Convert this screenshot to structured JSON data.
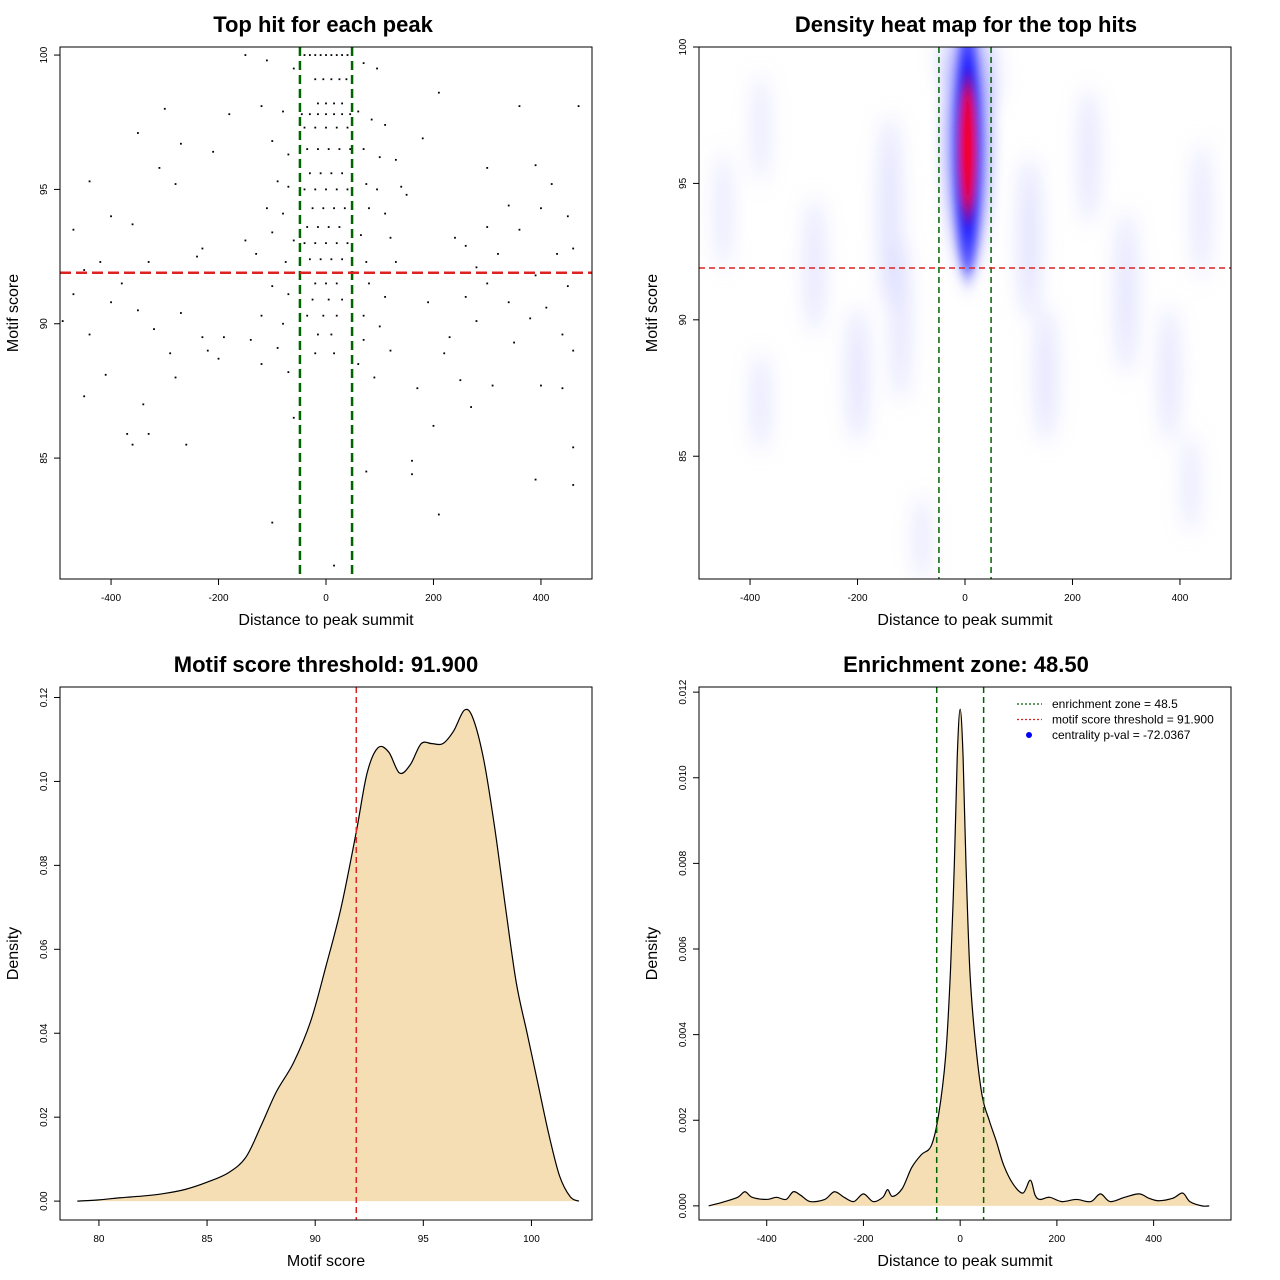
{
  "chart_data": [
    {
      "type": "scatter",
      "title": "Top hit for each peak",
      "xlabel": "Distance to peak summit",
      "ylabel": "Motif score",
      "xlim": [
        -495,
        495
      ],
      "ylim": [
        80.5,
        100.3
      ],
      "xticks": [
        -400,
        -200,
        0,
        200,
        400
      ],
      "yticks": [
        85,
        90,
        95,
        100
      ],
      "vlines": [
        -48.5,
        48.5
      ],
      "hline": 91.9,
      "vline_color": "#006400",
      "hline_color": "#dd2222",
      "points": [
        [
          -40,
          100
        ],
        [
          -30,
          100
        ],
        [
          -20,
          100
        ],
        [
          -10,
          100
        ],
        [
          0,
          100
        ],
        [
          10,
          100
        ],
        [
          20,
          100
        ],
        [
          30,
          100
        ],
        [
          40,
          100
        ],
        [
          -20,
          99.1
        ],
        [
          -5,
          99.1
        ],
        [
          10,
          99.1
        ],
        [
          25,
          99.1
        ],
        [
          38,
          99.1
        ],
        [
          -15,
          98.2
        ],
        [
          0,
          98.2
        ],
        [
          15,
          98.2
        ],
        [
          30,
          98.2
        ],
        [
          -45,
          97.8
        ],
        [
          -30,
          97.8
        ],
        [
          -15,
          97.8
        ],
        [
          0,
          97.8
        ],
        [
          15,
          97.8
        ],
        [
          30,
          97.8
        ],
        [
          45,
          97.8
        ],
        [
          -40,
          97.3
        ],
        [
          -20,
          97.3
        ],
        [
          0,
          97.3
        ],
        [
          20,
          97.3
        ],
        [
          40,
          97.3
        ],
        [
          -35,
          96.5
        ],
        [
          -15,
          96.5
        ],
        [
          5,
          96.5
        ],
        [
          25,
          96.5
        ],
        [
          45,
          96.5
        ],
        [
          -30,
          95.6
        ],
        [
          -10,
          95.6
        ],
        [
          10,
          95.6
        ],
        [
          30,
          95.6
        ],
        [
          -40,
          95.0
        ],
        [
          -20,
          95.0
        ],
        [
          0,
          95.0
        ],
        [
          20,
          95.0
        ],
        [
          40,
          95.0
        ],
        [
          -25,
          94.3
        ],
        [
          -5,
          94.3
        ],
        [
          15,
          94.3
        ],
        [
          35,
          94.3
        ],
        [
          -35,
          93.6
        ],
        [
          -15,
          93.6
        ],
        [
          5,
          93.6
        ],
        [
          25,
          93.6
        ],
        [
          -40,
          93.0
        ],
        [
          -20,
          93.0
        ],
        [
          0,
          93.0
        ],
        [
          20,
          93.0
        ],
        [
          40,
          93.0
        ],
        [
          -30,
          92.4
        ],
        [
          -10,
          92.4
        ],
        [
          10,
          92.4
        ],
        [
          30,
          92.4
        ],
        [
          -20,
          91.5
        ],
        [
          0,
          91.5
        ],
        [
          20,
          91.5
        ],
        [
          -25,
          90.9
        ],
        [
          5,
          90.9
        ],
        [
          30,
          90.9
        ],
        [
          -35,
          90.3
        ],
        [
          -5,
          90.3
        ],
        [
          20,
          90.3
        ],
        [
          -15,
          89.6
        ],
        [
          10,
          89.6
        ],
        [
          -20,
          88.9
        ],
        [
          15,
          88.9
        ],
        [
          -150,
          100
        ],
        [
          -110,
          99.8
        ],
        [
          -60,
          99.5
        ],
        [
          70,
          99.7
        ],
        [
          95,
          99.5
        ],
        [
          -120,
          98.1
        ],
        [
          -80,
          97.9
        ],
        [
          60,
          97.9
        ],
        [
          85,
          97.6
        ],
        [
          110,
          97.4
        ],
        [
          -100,
          96.8
        ],
        [
          -70,
          96.3
        ],
        [
          70,
          96.5
        ],
        [
          100,
          96.2
        ],
        [
          130,
          96.1
        ],
        [
          -90,
          95.3
        ],
        [
          -70,
          95.1
        ],
        [
          75,
          95.2
        ],
        [
          95,
          95.0
        ],
        [
          140,
          95.1
        ],
        [
          -110,
          94.3
        ],
        [
          -80,
          94.1
        ],
        [
          80,
          94.3
        ],
        [
          110,
          94.1
        ],
        [
          -100,
          93.4
        ],
        [
          -60,
          93.1
        ],
        [
          65,
          93.3
        ],
        [
          120,
          93.2
        ],
        [
          -130,
          92.6
        ],
        [
          -75,
          92.3
        ],
        [
          75,
          92.3
        ],
        [
          130,
          92.3
        ],
        [
          -100,
          91.4
        ],
        [
          -70,
          91.1
        ],
        [
          80,
          91.5
        ],
        [
          110,
          91.0
        ],
        [
          -120,
          90.3
        ],
        [
          -80,
          90.0
        ],
        [
          70,
          90.3
        ],
        [
          100,
          89.9
        ],
        [
          -140,
          89.4
        ],
        [
          -90,
          89.1
        ],
        [
          70,
          89.4
        ],
        [
          120,
          89.0
        ],
        [
          -120,
          88.5
        ],
        [
          -70,
          88.2
        ],
        [
          60,
          88.5
        ],
        [
          90,
          88.0
        ],
        [
          -300,
          98.0
        ],
        [
          -350,
          97.1
        ],
        [
          -270,
          96.7
        ],
        [
          -310,
          95.8
        ],
        [
          -440,
          95.3
        ],
        [
          -280,
          95.2
        ],
        [
          -400,
          94.0
        ],
        [
          -360,
          93.7
        ],
        [
          -470,
          93.5
        ],
        [
          -240,
          92.5
        ],
        [
          -420,
          92.3
        ],
        [
          -330,
          92.3
        ],
        [
          -450,
          92.0
        ],
        [
          -380,
          91.5
        ],
        [
          -470,
          91.1
        ],
        [
          -400,
          90.8
        ],
        [
          -350,
          90.5
        ],
        [
          -270,
          90.4
        ],
        [
          -490,
          90.1
        ],
        [
          -320,
          89.8
        ],
        [
          -440,
          89.6
        ],
        [
          -230,
          89.5
        ],
        [
          -290,
          88.9
        ],
        [
          -410,
          88.1
        ],
        [
          -280,
          88.0
        ],
        [
          -200,
          88.7
        ],
        [
          -450,
          87.3
        ],
        [
          -340,
          87.0
        ],
        [
          -370,
          85.9
        ],
        [
          -330,
          85.9
        ],
        [
          -360,
          85.5
        ],
        [
          -260,
          85.5
        ],
        [
          -220,
          89.0
        ],
        [
          -190,
          89.5
        ],
        [
          -180,
          97.8
        ],
        [
          -210,
          96.4
        ],
        [
          -230,
          92.8
        ],
        [
          360,
          98.1
        ],
        [
          470,
          98.1
        ],
        [
          300,
          95.8
        ],
        [
          390,
          95.9
        ],
        [
          420,
          95.2
        ],
        [
          340,
          94.4
        ],
        [
          400,
          94.3
        ],
        [
          450,
          94.0
        ],
        [
          300,
          93.6
        ],
        [
          360,
          93.5
        ],
        [
          260,
          92.9
        ],
        [
          320,
          92.6
        ],
        [
          430,
          92.6
        ],
        [
          460,
          92.8
        ],
        [
          280,
          92.1
        ],
        [
          390,
          91.8
        ],
        [
          300,
          91.5
        ],
        [
          450,
          91.4
        ],
        [
          260,
          91.0
        ],
        [
          340,
          90.8
        ],
        [
          410,
          90.6
        ],
        [
          380,
          90.2
        ],
        [
          280,
          90.1
        ],
        [
          440,
          89.6
        ],
        [
          230,
          89.5
        ],
        [
          350,
          89.3
        ],
        [
          460,
          89.0
        ],
        [
          250,
          87.9
        ],
        [
          310,
          87.7
        ],
        [
          400,
          87.7
        ],
        [
          440,
          87.6
        ],
        [
          170,
          87.6
        ],
        [
          270,
          86.9
        ],
        [
          200,
          86.2
        ],
        [
          460,
          85.4
        ],
        [
          390,
          84.2
        ],
        [
          460,
          84.0
        ],
        [
          160,
          84.9
        ],
        [
          160,
          84.4
        ],
        [
          210,
          82.9
        ],
        [
          220,
          88.9
        ],
        [
          190,
          90.8
        ],
        [
          240,
          93.2
        ],
        [
          180,
          96.9
        ],
        [
          210,
          98.6
        ],
        [
          -100,
          82.6
        ],
        [
          15,
          81.0
        ],
        [
          -150,
          93.1
        ],
        [
          150,
          94.8
        ],
        [
          -60,
          86.5
        ],
        [
          75,
          84.5
        ]
      ]
    },
    {
      "type": "heatmap",
      "title": "Density heat map for the top hits",
      "xlabel": "Distance to peak summit",
      "ylabel": "Motif score",
      "xlim": [
        -495,
        495
      ],
      "ylim": [
        80.5,
        100
      ],
      "xticks": [
        -400,
        -200,
        0,
        200,
        400
      ],
      "yticks": [
        85,
        90,
        95,
        100
      ],
      "vlines": [
        -48.5,
        48.5
      ],
      "hline": 91.9,
      "peak_center": [
        5,
        96.5
      ],
      "color_scale": [
        "white",
        "blue",
        "red"
      ]
    },
    {
      "type": "area",
      "title": "Motif score threshold: 91.900",
      "xlabel": "Motif score",
      "ylabel": "Density",
      "xlim": [
        78.2,
        102.8
      ],
      "ylim": [
        -0.0045,
        0.1225
      ],
      "xticks": [
        80,
        85,
        90,
        95,
        100
      ],
      "yticks": [
        0.0,
        0.02,
        0.04,
        0.06,
        0.08,
        0.1,
        0.12
      ],
      "ytick_labels": [
        "0.00",
        "0.02",
        "0.04",
        "0.06",
        "0.08",
        "0.10",
        "0.12"
      ],
      "vline": 91.9,
      "fill": "#f5deb3",
      "x": [
        79,
        80,
        81,
        82,
        83,
        84,
        85,
        86,
        86.8,
        87.5,
        88.2,
        89,
        89.8,
        90.5,
        91.2,
        91.9,
        92.4,
        92.9,
        93.4,
        93.9,
        94.4,
        94.9,
        95.4,
        95.9,
        96.4,
        96.9,
        97.3,
        97.8,
        98.3,
        98.8,
        99.3,
        99.8,
        100.3,
        100.8,
        101.3,
        101.8,
        102.2
      ],
      "y": [
        0.0,
        0.0003,
        0.0008,
        0.0012,
        0.0018,
        0.0028,
        0.0045,
        0.0068,
        0.0105,
        0.018,
        0.026,
        0.033,
        0.043,
        0.056,
        0.07,
        0.088,
        0.102,
        0.108,
        0.107,
        0.102,
        0.104,
        0.109,
        0.109,
        0.109,
        0.112,
        0.117,
        0.115,
        0.105,
        0.089,
        0.07,
        0.052,
        0.04,
        0.028,
        0.016,
        0.006,
        0.001,
        0.0
      ]
    },
    {
      "type": "area",
      "title": "Enrichment zone: 48.50",
      "xlabel": "Distance to peak summit",
      "ylabel": "Density",
      "xlim": [
        -540,
        560
      ],
      "ylim": [
        -0.00033,
        0.01212
      ],
      "xticks": [
        -400,
        -200,
        0,
        200,
        400
      ],
      "yticks": [
        0.0,
        0.002,
        0.004,
        0.006,
        0.008,
        0.01,
        0.012
      ],
      "ytick_labels": [
        "0.000",
        "0.002",
        "0.004",
        "0.006",
        "0.008",
        "0.010",
        "0.012"
      ],
      "vlines": [
        -48.5,
        48.5
      ],
      "fill": "#f5deb3",
      "legend": [
        "enrichment zone = 48.5",
        "motif score threshold = 91.900",
        "centrality p-val = -72.0367"
      ],
      "x": [
        -520,
        -490,
        -460,
        -445,
        -430,
        -400,
        -380,
        -360,
        -345,
        -330,
        -310,
        -280,
        -260,
        -240,
        -220,
        -200,
        -180,
        -160,
        -150,
        -140,
        -120,
        -100,
        -80,
        -60,
        -45,
        -30,
        -20,
        -12,
        -6,
        0,
        6,
        12,
        20,
        30,
        45,
        60,
        75,
        90,
        110,
        130,
        145,
        155,
        165,
        185,
        210,
        240,
        270,
        290,
        310,
        340,
        370,
        390,
        410,
        440,
        460,
        475,
        500,
        515
      ],
      "y": [
        0.0,
        9e-05,
        0.0002,
        0.00033,
        0.0002,
        0.00015,
        0.0002,
        0.00015,
        0.00033,
        0.00025,
        0.0001,
        0.00015,
        0.00033,
        0.0002,
        0.0001,
        0.00028,
        0.0001,
        0.0002,
        0.00038,
        0.00022,
        0.0004,
        0.0009,
        0.0012,
        0.0014,
        0.0021,
        0.0035,
        0.0055,
        0.008,
        0.0105,
        0.0116,
        0.0105,
        0.008,
        0.0055,
        0.004,
        0.0026,
        0.002,
        0.0015,
        0.00095,
        0.0005,
        0.0003,
        0.0006,
        0.00025,
        0.00015,
        0.0002,
        0.0001,
        0.00015,
        0.0001,
        0.00028,
        0.0001,
        0.0002,
        0.00028,
        0.00018,
        0.00012,
        0.00018,
        0.0003,
        0.0001,
        0.0,
        0.0
      ]
    }
  ]
}
